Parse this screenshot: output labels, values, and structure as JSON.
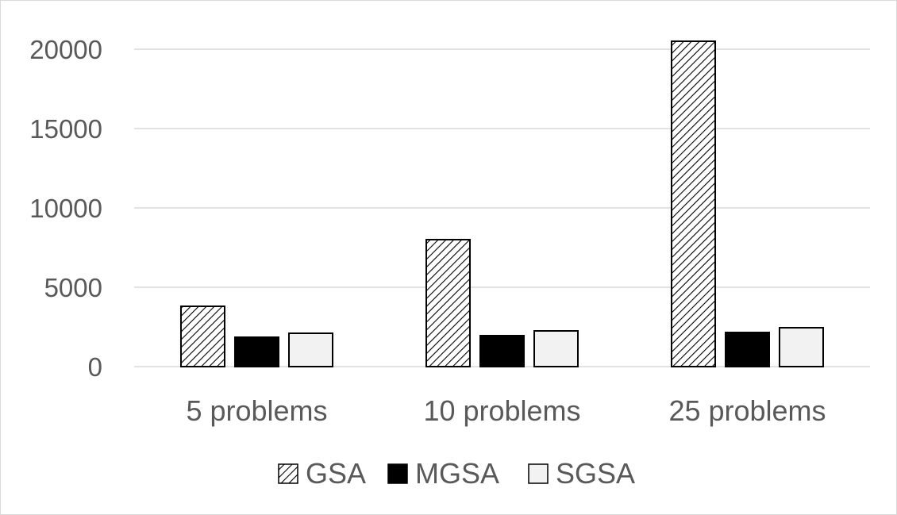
{
  "chart_data": {
    "type": "bar",
    "categories": [
      "5 problems",
      "10 problems",
      "25 problems"
    ],
    "series": [
      {
        "name": "GSA",
        "values": [
          3800,
          8000,
          20500
        ],
        "fill": "hatched",
        "color": "#000000"
      },
      {
        "name": "MGSA",
        "values": [
          1850,
          1950,
          2150
        ],
        "fill": "solid",
        "color": "#000000"
      },
      {
        "name": "SGSA",
        "values": [
          2100,
          2250,
          2450
        ],
        "fill": "solid",
        "color": "#f2f2f2"
      }
    ],
    "y_ticks": [
      "0",
      "5000",
      "10000",
      "15000",
      "20000"
    ],
    "ylim": [
      0,
      20000
    ],
    "grid": true,
    "legend_position": "bottom",
    "title": "",
    "xlabel": "",
    "ylabel": ""
  }
}
